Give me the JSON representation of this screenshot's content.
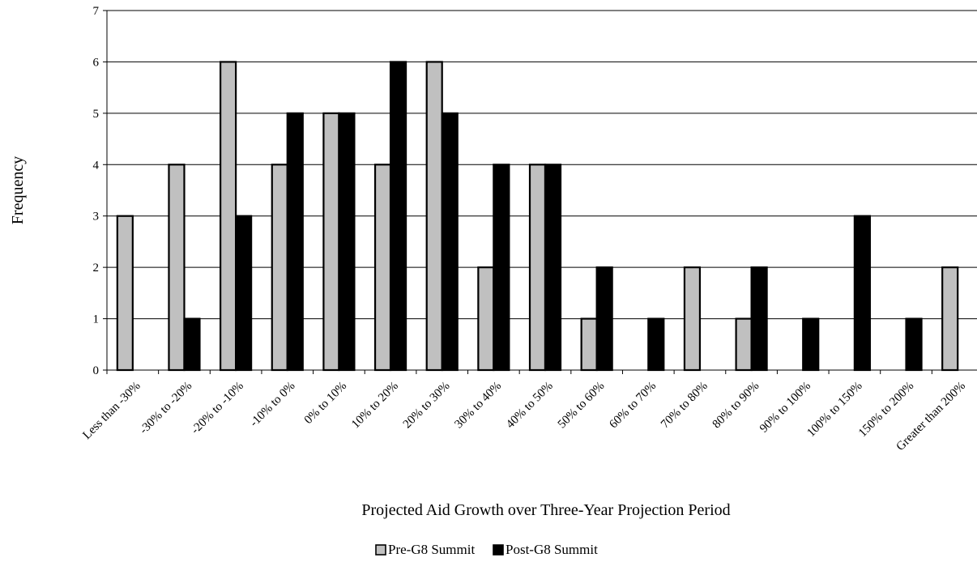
{
  "chart_data": {
    "type": "bar",
    "title": "",
    "xlabel": "Projected Aid Growth over Three-Year Projection Period",
    "ylabel": "Frequency",
    "ylim": [
      0,
      7
    ],
    "yticks": [
      0,
      1,
      2,
      3,
      4,
      5,
      6,
      7
    ],
    "grid": true,
    "legend_position": "bottom",
    "categories": [
      "Less than -30%",
      "-30% to -20%",
      "-20% to -10%",
      "-10% to 0%",
      "0% to 10%",
      "10% to 20%",
      "20% to 30%",
      "30% to 40%",
      "40% to 50%",
      "50% to 60%",
      "60% to 70%",
      "70% to 80%",
      "80% to 90%",
      "90% to 100%",
      "100% to 150%",
      "150% to 200%",
      "Greater than 200%"
    ],
    "series": [
      {
        "name": "Pre-G8 Summit",
        "color": "#c0c0c0",
        "values": [
          3,
          4,
          6,
          4,
          5,
          4,
          6,
          2,
          4,
          1,
          0,
          2,
          1,
          0,
          0,
          0,
          2
        ]
      },
      {
        "name": "Post-G8 Summit",
        "color": "#000000",
        "values": [
          0,
          1,
          3,
          5,
          5,
          6,
          5,
          4,
          4,
          2,
          1,
          0,
          2,
          1,
          3,
          1,
          0
        ]
      }
    ]
  }
}
